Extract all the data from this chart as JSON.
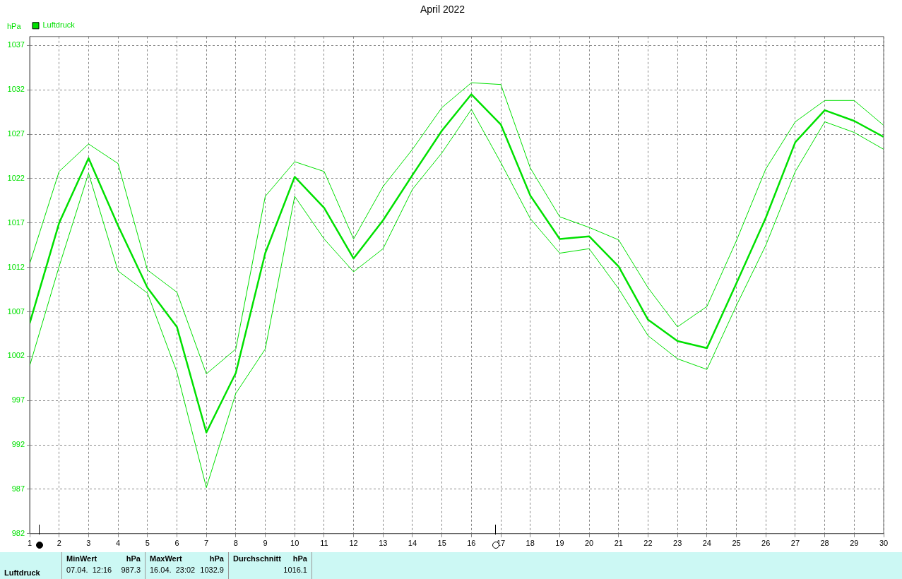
{
  "chart_data": {
    "type": "line",
    "title": "April 2022",
    "ylabel": "hPa",
    "x": [
      1,
      2,
      3,
      4,
      5,
      6,
      7,
      8,
      9,
      10,
      11,
      12,
      13,
      14,
      15,
      16,
      17,
      18,
      19,
      20,
      21,
      22,
      23,
      24,
      25,
      26,
      27,
      28,
      29,
      30
    ],
    "xlim": [
      1,
      30
    ],
    "xticks": [
      1,
      2,
      3,
      4,
      5,
      6,
      7,
      8,
      9,
      10,
      11,
      12,
      13,
      14,
      15,
      16,
      17,
      18,
      19,
      20,
      21,
      22,
      23,
      24,
      25,
      26,
      27,
      28,
      29,
      30
    ],
    "ylim": [
      982,
      1038
    ],
    "yticks": [
      982,
      987,
      992,
      997,
      1002,
      1007,
      1012,
      1017,
      1022,
      1027,
      1032,
      1037
    ],
    "series": [
      {
        "name": "Luftdruck",
        "color": "#00e000",
        "values": [
          1005.7,
          1017.0,
          1024.3,
          1016.7,
          1009.7,
          1005.3,
          993.4,
          1000.1,
          1013.6,
          1022.2,
          1018.7,
          1013.0,
          1017.3,
          1022.4,
          1027.4,
          1031.5,
          1028.1,
          1020.1,
          1015.2,
          1015.5,
          1012.1,
          1006.1,
          1003.7,
          1002.9,
          1010.2,
          1017.6,
          1026.1,
          1029.7,
          1028.5,
          1026.7
        ]
      },
      {
        "color": "#00e000",
        "values": [
          1012.4,
          1022.8,
          1025.9,
          1023.7,
          1011.7,
          1009.2,
          1000.0,
          1002.8,
          1020.0,
          1023.9,
          1022.8,
          1015.2,
          1021.1,
          1025.3,
          1030.0,
          1032.8,
          1032.6,
          1023.2,
          1017.7,
          1016.5,
          1015.1,
          1009.7,
          1005.3,
          1007.6,
          1015.0,
          1023.1,
          1028.4,
          1030.8,
          1030.8,
          1028.0
        ]
      },
      {
        "color": "#00e000",
        "values": [
          1000.9,
          1012.1,
          1022.6,
          1011.6,
          1009.1,
          1000.2,
          987.2,
          997.8,
          1002.8,
          1020.0,
          1015.2,
          1011.5,
          1014.1,
          1020.8,
          1024.9,
          1029.8,
          1023.8,
          1017.5,
          1013.6,
          1014.1,
          1009.6,
          1004.3,
          1001.7,
          1000.5,
          1007.7,
          1014.5,
          1022.8,
          1028.4,
          1027.2,
          1025.3
        ]
      }
    ],
    "grid": true,
    "legend": "top left",
    "marker": "none",
    "line_style": "solid",
    "annotations": [
      "Luftdruck",
      "MinWert",
      "hPa",
      "07.04.  12:16",
      "987.3",
      "MaxWert",
      "hPa",
      "16.04.  23:02",
      "1032.9",
      "Durchschnitt",
      "hPa",
      "1016.1"
    ]
  }
}
